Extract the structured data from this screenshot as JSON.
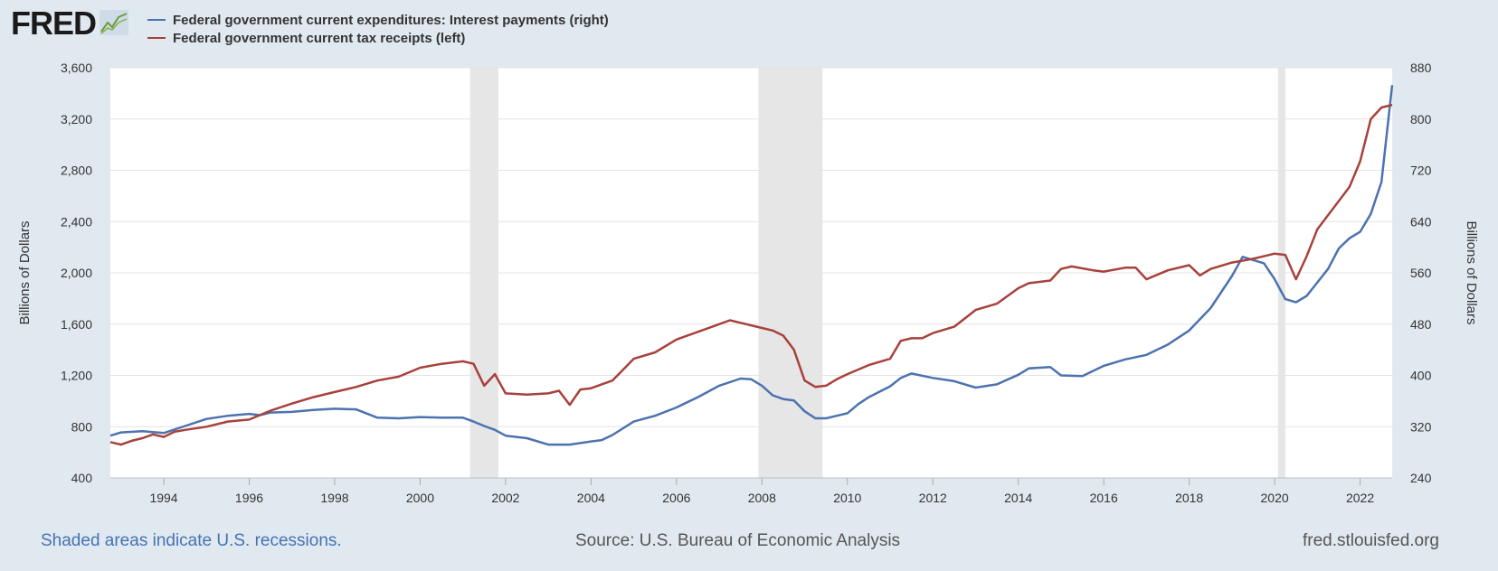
{
  "header": {
    "logo_text": "FRED",
    "legend": [
      {
        "label": "Federal government current expenditures: Interest payments (right)",
        "color": "#4c72b0"
      },
      {
        "label": "Federal government current tax receipts (left)",
        "color": "#a8413c"
      }
    ]
  },
  "footer": {
    "note": "Shaded areas indicate U.S. recessions.",
    "source": "Source: U.S. Bureau of Economic Analysis",
    "site": "fred.stlouisfed.org"
  },
  "chart_data": {
    "type": "line",
    "title": "",
    "xlabel": "",
    "ylabel_left": "Billions of Dollars",
    "ylabel_right": "Billions of Dollars",
    "xlim": [
      1992.75,
      2022.75
    ],
    "ylim_left": [
      400,
      3600
    ],
    "ylim_right": [
      240,
      880
    ],
    "yticks_left": [
      400,
      800,
      1200,
      1600,
      2000,
      2400,
      2800,
      3200,
      3600
    ],
    "ytick_labels_left": [
      "400",
      "800",
      "1,200",
      "1,600",
      "2,000",
      "2,400",
      "2,800",
      "3,200",
      "3,600"
    ],
    "yticks_right": [
      240,
      320,
      400,
      480,
      560,
      640,
      720,
      800,
      880
    ],
    "ytick_labels_right": [
      "240",
      "320",
      "400",
      "480",
      "560",
      "640",
      "720",
      "800",
      "880"
    ],
    "xticks": [
      1994,
      1996,
      1998,
      2000,
      2002,
      2004,
      2006,
      2008,
      2010,
      2012,
      2014,
      2016,
      2018,
      2020,
      2022
    ],
    "xtick_labels": [
      "1994",
      "1996",
      "1998",
      "2000",
      "2002",
      "2004",
      "2006",
      "2008",
      "2010",
      "2012",
      "2014",
      "2016",
      "2018",
      "2020",
      "2022"
    ],
    "grid": true,
    "recessions": [
      [
        2001.17,
        2001.83
      ],
      [
        2007.92,
        2009.42
      ],
      [
        2020.08,
        2020.25
      ]
    ],
    "series": [
      {
        "name": "Federal government current expenditures: Interest payments (right)",
        "axis": "right",
        "color": "#4c72b0",
        "points": [
          [
            1992.75,
            306
          ],
          [
            1993.0,
            311
          ],
          [
            1993.5,
            313
          ],
          [
            1994.0,
            310
          ],
          [
            1994.5,
            321
          ],
          [
            1995.0,
            332
          ],
          [
            1995.5,
            337
          ],
          [
            1996.0,
            340
          ],
          [
            1996.25,
            338
          ],
          [
            1996.5,
            342
          ],
          [
            1997.0,
            343
          ],
          [
            1997.5,
            346
          ],
          [
            1998.0,
            348
          ],
          [
            1998.5,
            347
          ],
          [
            1999.0,
            334
          ],
          [
            1999.5,
            333
          ],
          [
            2000.0,
            335
          ],
          [
            2000.5,
            334
          ],
          [
            2001.0,
            334
          ],
          [
            2001.25,
            328
          ],
          [
            2001.5,
            321
          ],
          [
            2001.75,
            315
          ],
          [
            2002.0,
            306
          ],
          [
            2002.5,
            302
          ],
          [
            2003.0,
            292
          ],
          [
            2003.5,
            292
          ],
          [
            2004.0,
            297
          ],
          [
            2004.25,
            299
          ],
          [
            2004.5,
            307
          ],
          [
            2005.0,
            328
          ],
          [
            2005.5,
            337
          ],
          [
            2006.0,
            350
          ],
          [
            2006.5,
            366
          ],
          [
            2007.0,
            384
          ],
          [
            2007.5,
            395
          ],
          [
            2007.75,
            394
          ],
          [
            2008.0,
            384
          ],
          [
            2008.25,
            369
          ],
          [
            2008.5,
            363
          ],
          [
            2008.75,
            361
          ],
          [
            2009.0,
            344
          ],
          [
            2009.25,
            333
          ],
          [
            2009.5,
            333
          ],
          [
            2009.75,
            337
          ],
          [
            2010.0,
            341
          ],
          [
            2010.25,
            355
          ],
          [
            2010.5,
            366
          ],
          [
            2011.0,
            383
          ],
          [
            2011.25,
            396
          ],
          [
            2011.5,
            403
          ],
          [
            2012.0,
            396
          ],
          [
            2012.5,
            391
          ],
          [
            2013.0,
            381
          ],
          [
            2013.5,
            386
          ],
          [
            2014.0,
            401
          ],
          [
            2014.25,
            411
          ],
          [
            2014.75,
            413
          ],
          [
            2015.0,
            400
          ],
          [
            2015.5,
            399
          ],
          [
            2016.0,
            415
          ],
          [
            2016.5,
            425
          ],
          [
            2017.0,
            432
          ],
          [
            2017.5,
            448
          ],
          [
            2018.0,
            470
          ],
          [
            2018.5,
            505
          ],
          [
            2019.0,
            555
          ],
          [
            2019.25,
            585
          ],
          [
            2019.75,
            575
          ],
          [
            2020.0,
            550
          ],
          [
            2020.25,
            519
          ],
          [
            2020.5,
            514
          ],
          [
            2020.75,
            524
          ],
          [
            2021.0,
            545
          ],
          [
            2021.25,
            566
          ],
          [
            2021.5,
            598
          ],
          [
            2021.75,
            614
          ],
          [
            2022.0,
            624
          ],
          [
            2022.25,
            652
          ],
          [
            2022.5,
            702
          ],
          [
            2022.75,
            853
          ]
        ]
      },
      {
        "name": "Federal government current tax receipts (left)",
        "axis": "left",
        "color": "#a8413c",
        "points": [
          [
            1992.75,
            680
          ],
          [
            1993.0,
            660
          ],
          [
            1993.25,
            690
          ],
          [
            1993.5,
            710
          ],
          [
            1993.75,
            740
          ],
          [
            1994.0,
            720
          ],
          [
            1994.25,
            760
          ],
          [
            1994.5,
            775
          ],
          [
            1995.0,
            800
          ],
          [
            1995.5,
            840
          ],
          [
            1996.0,
            855
          ],
          [
            1996.5,
            925
          ],
          [
            1997.0,
            980
          ],
          [
            1997.5,
            1030
          ],
          [
            1998.0,
            1070
          ],
          [
            1998.5,
            1110
          ],
          [
            1999.0,
            1160
          ],
          [
            1999.5,
            1190
          ],
          [
            2000.0,
            1260
          ],
          [
            2000.5,
            1290
          ],
          [
            2001.0,
            1310
          ],
          [
            2001.25,
            1290
          ],
          [
            2001.5,
            1120
          ],
          [
            2001.75,
            1210
          ],
          [
            2002.0,
            1060
          ],
          [
            2002.5,
            1050
          ],
          [
            2003.0,
            1060
          ],
          [
            2003.25,
            1080
          ],
          [
            2003.5,
            970
          ],
          [
            2003.75,
            1090
          ],
          [
            2004.0,
            1100
          ],
          [
            2004.5,
            1160
          ],
          [
            2005.0,
            1330
          ],
          [
            2005.5,
            1380
          ],
          [
            2006.0,
            1480
          ],
          [
            2006.5,
            1540
          ],
          [
            2007.0,
            1600
          ],
          [
            2007.25,
            1630
          ],
          [
            2007.5,
            1610
          ],
          [
            2008.0,
            1570
          ],
          [
            2008.25,
            1550
          ],
          [
            2008.5,
            1510
          ],
          [
            2008.75,
            1400
          ],
          [
            2009.0,
            1160
          ],
          [
            2009.25,
            1110
          ],
          [
            2009.5,
            1120
          ],
          [
            2009.75,
            1170
          ],
          [
            2010.0,
            1210
          ],
          [
            2010.5,
            1280
          ],
          [
            2011.0,
            1330
          ],
          [
            2011.25,
            1470
          ],
          [
            2011.5,
            1490
          ],
          [
            2011.75,
            1490
          ],
          [
            2012.0,
            1530
          ],
          [
            2012.5,
            1580
          ],
          [
            2013.0,
            1710
          ],
          [
            2013.5,
            1760
          ],
          [
            2014.0,
            1880
          ],
          [
            2014.25,
            1920
          ],
          [
            2014.75,
            1940
          ],
          [
            2015.0,
            2030
          ],
          [
            2015.25,
            2050
          ],
          [
            2015.75,
            2020
          ],
          [
            2016.0,
            2010
          ],
          [
            2016.5,
            2040
          ],
          [
            2016.75,
            2040
          ],
          [
            2017.0,
            1950
          ],
          [
            2017.5,
            2020
          ],
          [
            2018.0,
            2060
          ],
          [
            2018.25,
            1980
          ],
          [
            2018.5,
            2030
          ],
          [
            2019.0,
            2080
          ],
          [
            2019.5,
            2110
          ],
          [
            2020.0,
            2150
          ],
          [
            2020.25,
            2140
          ],
          [
            2020.5,
            1950
          ],
          [
            2020.75,
            2130
          ],
          [
            2021.0,
            2340
          ],
          [
            2021.5,
            2560
          ],
          [
            2021.75,
            2670
          ],
          [
            2022.0,
            2870
          ],
          [
            2022.25,
            3200
          ],
          [
            2022.5,
            3290
          ],
          [
            2022.75,
            3310
          ]
        ]
      }
    ]
  }
}
